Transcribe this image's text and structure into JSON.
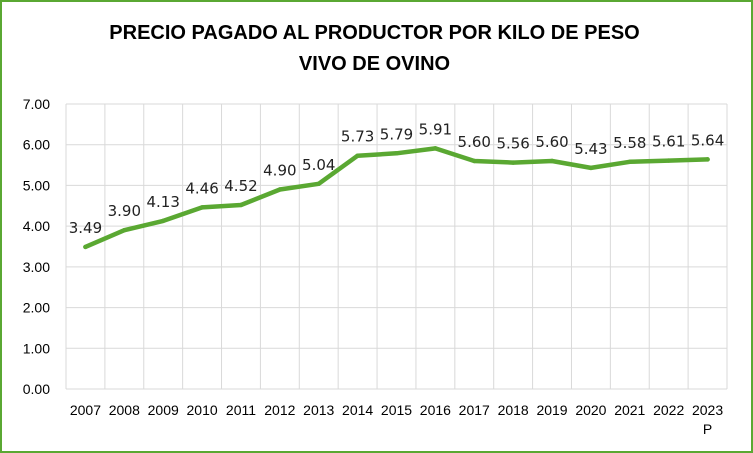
{
  "chart_data": {
    "type": "line",
    "title_lines": [
      "PRECIO PAGADO AL PRODUCTOR POR KILO DE PESO",
      "VIVO DE OVINO"
    ],
    "xlabel": "",
    "ylabel": "",
    "categories": [
      "2007",
      "2008",
      "2009",
      "2010",
      "2011",
      "2012",
      "2013",
      "2014",
      "2015",
      "2016",
      "2017",
      "2018",
      "2019",
      "2020",
      "2021",
      "2022",
      "2023"
    ],
    "category_sublabels": {
      "2023": "P"
    },
    "values": [
      3.49,
      3.9,
      4.13,
      4.46,
      4.52,
      4.9,
      5.04,
      5.73,
      5.79,
      5.91,
      5.6,
      5.56,
      5.6,
      5.43,
      5.58,
      5.61,
      5.64
    ],
    "data_labels": [
      "3.49",
      "3.90",
      "4.13",
      "4.46",
      "4.52",
      "4.90",
      "5.04",
      "5.73",
      "5.79",
      "5.91",
      "5.60",
      "5.56",
      "5.60",
      "5.43",
      "5.58",
      "5.61",
      "5.64"
    ],
    "ylim": [
      0,
      7
    ],
    "yticks": [
      "0.00",
      "1.00",
      "2.00",
      "3.00",
      "4.00",
      "5.00",
      "6.00",
      "7.00"
    ],
    "grid": true,
    "legend": "none",
    "line_color": "#5aa832",
    "grid_color": "#d9d9d9"
  }
}
